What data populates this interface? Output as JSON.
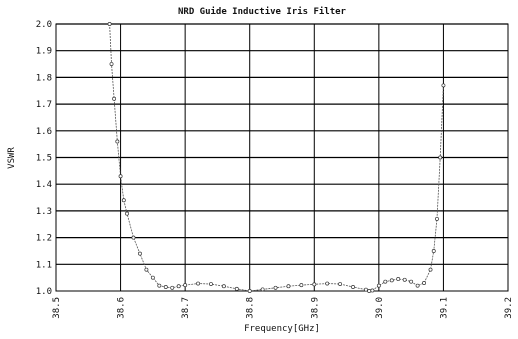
{
  "chart_data": {
    "type": "line",
    "title": "NRD Guide Inductive Iris Filter",
    "xlabel": "Frequency[GHz]",
    "ylabel": "VSWR",
    "xlim": [
      38.5,
      39.2
    ],
    "ylim": [
      1.0,
      2.0
    ],
    "x_ticks": [
      "38.5",
      "38.6",
      "38.7",
      "38.8",
      "38.9",
      "39.0",
      "39.1",
      "39.2"
    ],
    "y_ticks": [
      "1.0",
      "1.1",
      "1.2",
      "1.3",
      "1.4",
      "1.5",
      "1.6",
      "1.7",
      "1.8",
      "1.9",
      "2.0"
    ],
    "grid": true,
    "series": [
      {
        "x": [
          38.583,
          38.586,
          38.59,
          38.595,
          38.6,
          38.605,
          38.61,
          38.62,
          38.63,
          38.64,
          38.65,
          38.66,
          38.67,
          38.68,
          38.69,
          38.7,
          38.72,
          38.74,
          38.76,
          38.78,
          38.8,
          38.82,
          38.84,
          38.86,
          38.88,
          38.9,
          38.92,
          38.94,
          38.96,
          38.98,
          38.985,
          38.99,
          39.0,
          39.01,
          39.02,
          39.03,
          39.04,
          39.05,
          39.06,
          39.07,
          39.08,
          39.085,
          39.09,
          39.095,
          39.1
        ],
        "values": [
          2.0,
          1.85,
          1.72,
          1.56,
          1.43,
          1.34,
          1.29,
          1.2,
          1.14,
          1.08,
          1.05,
          1.02,
          1.015,
          1.012,
          1.018,
          1.022,
          1.028,
          1.026,
          1.018,
          1.008,
          1.0,
          1.006,
          1.012,
          1.018,
          1.022,
          1.025,
          1.028,
          1.026,
          1.015,
          1.005,
          1.0,
          1.002,
          1.02,
          1.035,
          1.04,
          1.045,
          1.042,
          1.035,
          1.02,
          1.03,
          1.08,
          1.15,
          1.27,
          1.5,
          1.77
        ]
      }
    ]
  }
}
